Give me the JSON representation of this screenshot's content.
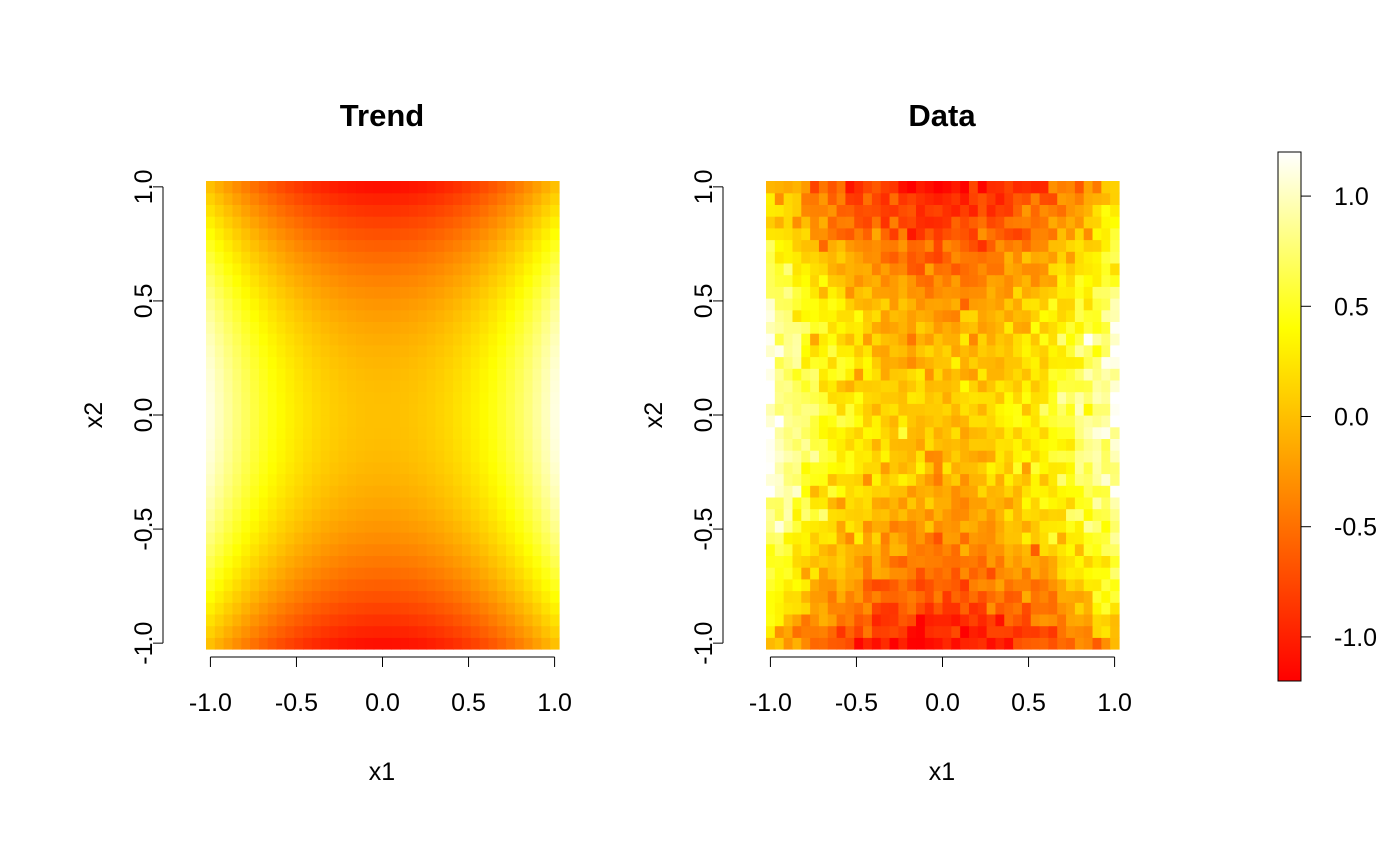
{
  "chart_data": [
    {
      "type": "heatmap",
      "title": "Trend",
      "xlabel": "x1",
      "ylabel": "x2",
      "xlim": [
        -1.0,
        1.0
      ],
      "ylim": [
        -1.0,
        1.0
      ],
      "x_ticks": [
        "-1.0",
        "-0.5",
        "0.0",
        "0.5",
        "1.0"
      ],
      "y_ticks": [
        "-1.0",
        "-0.5",
        "0.0",
        "0.5",
        "1.0"
      ],
      "grid_size": [
        40,
        40
      ],
      "z_description": "smooth trend surface: low (about -1.1) near x2 = ±1 and x1 ≈ 0, high (about 1.1) near x1 = ±1 and x2 ≈ 0",
      "z_range": [
        -1.1,
        1.1
      ]
    },
    {
      "type": "heatmap",
      "title": "Data",
      "xlabel": "x1",
      "ylabel": "x2",
      "xlim": [
        -1.0,
        1.0
      ],
      "ylim": [
        -1.0,
        1.0
      ],
      "x_ticks": [
        "-1.0",
        "-0.5",
        "0.0",
        "0.5",
        "1.0"
      ],
      "y_ticks": [
        "-1.0",
        "-0.5",
        "0.0",
        "0.5",
        "1.0"
      ],
      "grid_size": [
        40,
        40
      ],
      "z_description": "trend surface plus random noise",
      "z_range": [
        -1.2,
        1.2
      ]
    }
  ],
  "colorbar": {
    "zlim": [
      -1.2,
      1.2
    ],
    "ticks": [
      -1.0,
      -0.5,
      0.0,
      0.5,
      1.0
    ],
    "tick_labels": [
      "-1.0",
      "-0.5",
      "0.0",
      "0.5",
      "1.0"
    ],
    "palette": [
      "#ff0000",
      "#ff8000",
      "#ffff00",
      "#ffffff"
    ],
    "palette_name": "heat.colors"
  }
}
